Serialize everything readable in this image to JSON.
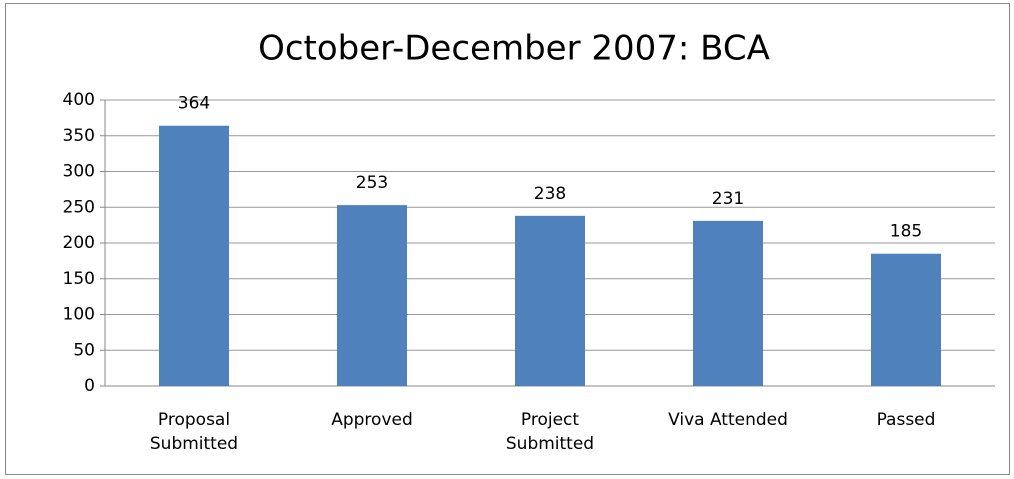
{
  "chart_data": {
    "type": "bar",
    "title": "October-December 2007: BCA",
    "categories": [
      "Proposal Submitted",
      "Approved",
      "Project Submitted",
      "Viva Attended",
      "Passed"
    ],
    "values": [
      364,
      253,
      238,
      231,
      185
    ],
    "color": "#4f81bd",
    "ylim": [
      0,
      400
    ],
    "yticks": [
      0,
      50,
      100,
      150,
      200,
      250,
      300,
      350,
      400
    ],
    "grid": true
  }
}
